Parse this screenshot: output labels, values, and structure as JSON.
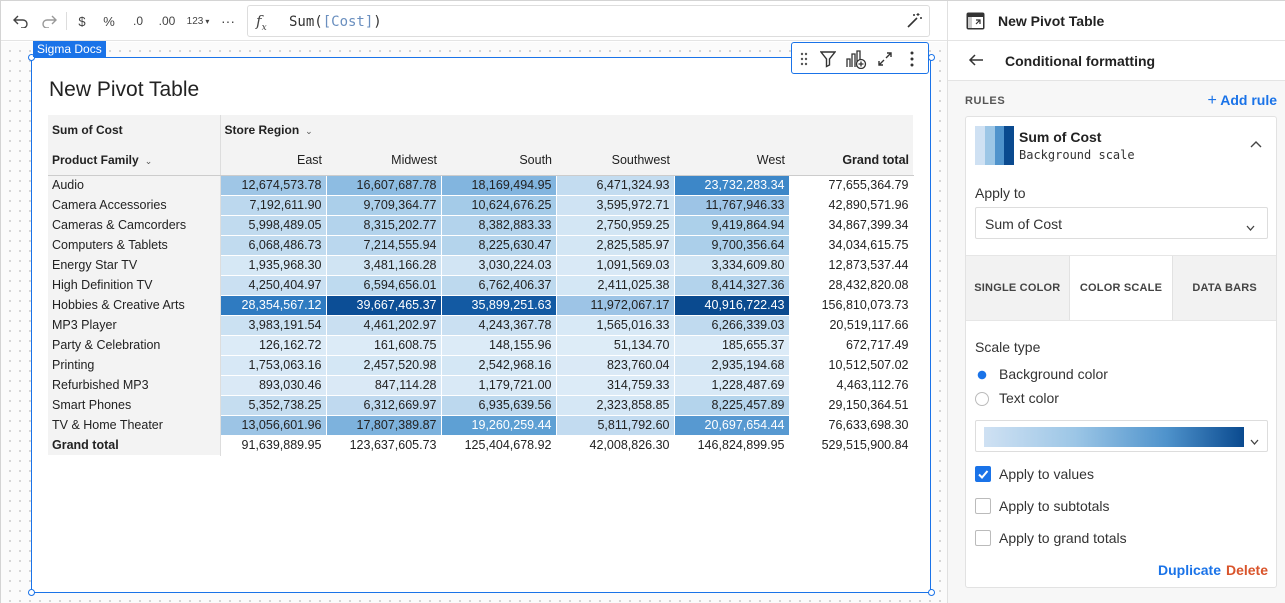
{
  "toolbar": {
    "items": [
      {
        "name": "undo-button",
        "icon": "undo-icon"
      },
      {
        "name": "redo-button",
        "icon": "redo-icon"
      },
      {
        "name": "currency-format-button",
        "label": "$"
      },
      {
        "name": "percent-format-button",
        "label": "%"
      },
      {
        "name": "decrease-decimal-button",
        "label": ".0"
      },
      {
        "name": "increase-decimal-button",
        "label": ".00"
      },
      {
        "name": "number-format-button",
        "label": "123"
      },
      {
        "name": "more-format-button",
        "label": "···"
      }
    ],
    "formula_prefix": "Sum(",
    "formula_ref": "[Cost]",
    "formula_suffix": ")"
  },
  "element": {
    "tag": "Sigma Docs",
    "title": "New Pivot Table"
  },
  "pivot": {
    "value_label": "Sum of Cost",
    "column_field": "Store Region",
    "row_field": "Product Family",
    "columns": [
      "East",
      "Midwest",
      "South",
      "Southwest",
      "West",
      "Grand total"
    ],
    "rows": [
      {
        "label": "Audio",
        "values": [
          "12,674,573.78",
          "16,607,687.78",
          "18,169,494.95",
          "6,471,324.93",
          "23,732,283.34",
          "77,655,364.79"
        ],
        "shade": [
          "#9fc6e6",
          "#8dbce2",
          "#82b5df",
          "#c3dcf0",
          "#3d87c8",
          null
        ]
      },
      {
        "label": "Camera Accessories",
        "values": [
          "7,192,611.90",
          "9,709,364.77",
          "10,624,676.25",
          "3,595,972.71",
          "11,767,946.33",
          "42,890,571.96"
        ],
        "shade": [
          "#bcd8ee",
          "#abcfea",
          "#a4cbe8",
          "#cfe3f3",
          "#9dc4e6",
          null
        ]
      },
      {
        "label": "Cameras & Camcorders",
        "values": [
          "5,998,489.05",
          "8,315,202.77",
          "8,382,883.33",
          "2,750,959.25",
          "9,419,864.94",
          "34,867,399.34"
        ],
        "shade": [
          "#c1dbef",
          "#b3d3ec",
          "#b3d3ec",
          "#d3e6f4",
          "#acd0ea",
          null
        ]
      },
      {
        "label": "Computers & Tablets",
        "values": [
          "6,068,486.73",
          "7,214,555.94",
          "8,225,630.47",
          "2,825,585.97",
          "9,700,356.64",
          "34,034,615.75"
        ],
        "shade": [
          "#c1dbef",
          "#bad7ee",
          "#b4d4ec",
          "#d3e6f4",
          "#abcfea",
          null
        ]
      },
      {
        "label": "Energy Star TV",
        "values": [
          "1,935,968.30",
          "3,481,166.28",
          "3,030,224.03",
          "1,091,569.03",
          "3,334,609.80",
          "12,873,537.44"
        ],
        "shade": [
          "#d6e8f5",
          "#d0e4f3",
          "#d2e5f4",
          "#d9e9f6",
          "#d0e4f3",
          null
        ]
      },
      {
        "label": "High Definition TV",
        "values": [
          "4,250,404.97",
          "6,594,656.01",
          "6,762,406.37",
          "2,411,025.38",
          "8,414,327.36",
          "28,432,820.08"
        ],
        "shade": [
          "#cae0f2",
          "#bedaef",
          "#bdd9ee",
          "#d4e7f5",
          "#b3d3ec",
          null
        ]
      },
      {
        "label": "Hobbies & Creative Arts",
        "values": [
          "28,354,567.12",
          "39,667,465.37",
          "35,899,251.63",
          "11,972,067.17",
          "40,916,722.43",
          "156,810,073.73"
        ],
        "shade": [
          "#2f7bc1",
          "#0c4e96",
          "#135aa3",
          "#9dc4e6",
          "#0a4a8f",
          null
        ]
      },
      {
        "label": "MP3 Player",
        "values": [
          "3,983,191.54",
          "4,461,202.97",
          "4,243,367.78",
          "1,565,016.33",
          "6,266,339.03",
          "20,519,117.66"
        ],
        "shade": [
          "#cbe1f2",
          "#c9dff1",
          "#cae0f2",
          "#d8e9f6",
          "#c0daef",
          null
        ]
      },
      {
        "label": "Party & Celebration",
        "values": [
          "126,162.72",
          "161,608.75",
          "148,155.96",
          "51,134.70",
          "185,655.37",
          "672,717.49"
        ],
        "shade": [
          "#dcebf7",
          "#dcebf7",
          "#dcebf7",
          "#ddecf7",
          "#dcebf7",
          null
        ]
      },
      {
        "label": "Printing",
        "values": [
          "1,753,063.16",
          "2,457,520.98",
          "2,542,968.16",
          "823,760.04",
          "2,935,194.68",
          "10,512,507.02"
        ],
        "shade": [
          "#d7e8f6",
          "#d4e7f5",
          "#d4e7f5",
          "#dae9f6",
          "#d2e5f4",
          null
        ]
      },
      {
        "label": "Refurbished MP3",
        "values": [
          "893,030.46",
          "847,114.28",
          "1,179,721.00",
          "314,759.33",
          "1,228,487.69",
          "4,463,112.76"
        ],
        "shade": [
          "#dae9f6",
          "#dae9f6",
          "#d9e9f6",
          "#dcebf7",
          "#d9e9f6",
          null
        ]
      },
      {
        "label": "Smart Phones",
        "values": [
          "5,352,738.25",
          "6,312,669.97",
          "6,935,639.56",
          "2,323,858.85",
          "8,225,457.89",
          "29,150,364.51"
        ],
        "shade": [
          "#c5ddf0",
          "#bfd9ef",
          "#bcd8ee",
          "#d5e7f5",
          "#b4d4ec",
          null
        ]
      },
      {
        "label": "TV & Home Theater",
        "values": [
          "13,056,601.96",
          "17,807,389.87",
          "19,260,259.44",
          "5,811,792.60",
          "20,697,654.44",
          "76,633,698.30"
        ],
        "shade": [
          "#9cc4e5",
          "#7db2dd",
          "#5ea0d4",
          "#c2dbf0",
          "#5799d1",
          null
        ]
      }
    ],
    "grand_total": {
      "label": "Grand total",
      "values": [
        "91,639,889.95",
        "123,637,605.73",
        "125,404,678.92",
        "42,008,826.30",
        "146,824,899.95",
        "529,515,900.84"
      ]
    },
    "white_text_threshold": "#5a"
  },
  "panel": {
    "title": "New Pivot Table",
    "section": "Conditional formatting",
    "rules_label": "RULES",
    "add_rule": "Add rule",
    "rule": {
      "title": "Sum of Cost",
      "subtitle": "Background scale",
      "apply_to_label": "Apply to",
      "apply_to_value": "Sum of Cost",
      "tabs": [
        "SINGLE COLOR",
        "COLOR SCALE",
        "DATA BARS"
      ],
      "active_tab": "COLOR SCALE",
      "scale_type_label": "Scale type",
      "scale_options": [
        {
          "label": "Background color",
          "selected": true
        },
        {
          "label": "Text color",
          "selected": false
        }
      ],
      "gradient_colors": [
        "#cfe1f3",
        "#9cc6e6",
        "#4f93cc",
        "#0a4a8f"
      ],
      "checks": [
        {
          "label": "Apply to values",
          "checked": true
        },
        {
          "label": "Apply to subtotals",
          "checked": false
        },
        {
          "label": "Apply to grand totals",
          "checked": false
        }
      ],
      "duplicate": "Duplicate",
      "delete": "Delete"
    }
  },
  "colors": {
    "accent": "#1a73e8",
    "delete": "#d9542b"
  }
}
